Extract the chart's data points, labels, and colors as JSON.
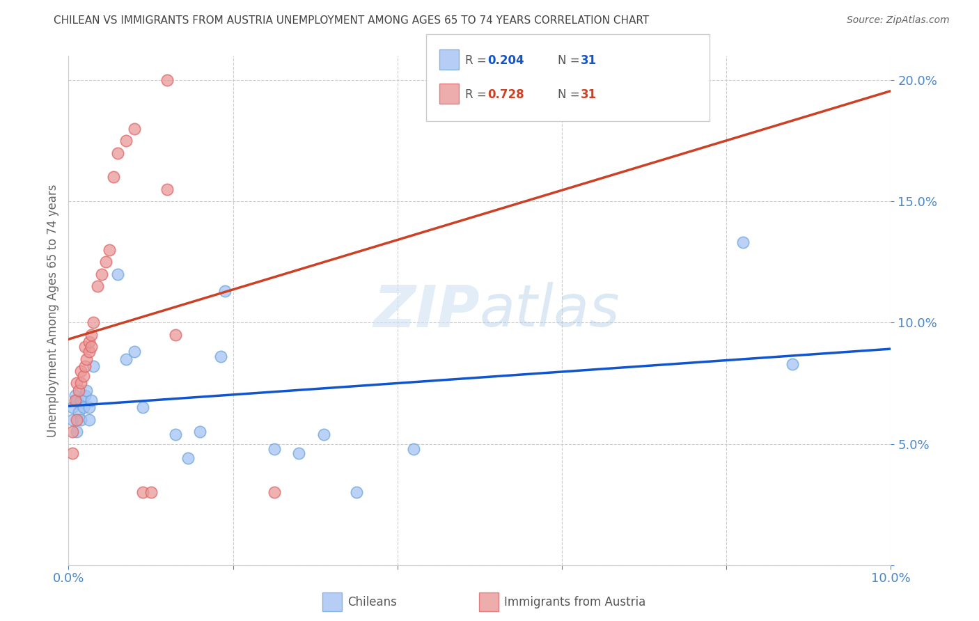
{
  "title": "CHILEAN VS IMMIGRANTS FROM AUSTRIA UNEMPLOYMENT AMONG AGES 65 TO 74 YEARS CORRELATION CHART",
  "source": "Source: ZipAtlas.com",
  "ylabel": "Unemployment Among Ages 65 to 74 years",
  "xlim": [
    0,
    0.1
  ],
  "ylim": [
    0,
    0.21
  ],
  "legend_labels": [
    "Chileans",
    "Immigrants from Austria"
  ],
  "r_chilean": 0.204,
  "n_chilean": 31,
  "r_austria": 0.728,
  "n_austria": 31,
  "blue_color": "#a4c2f4",
  "pink_color": "#ea9999",
  "blue_scatter_edge": "#6fa8dc",
  "pink_scatter_edge": "#e06666",
  "blue_line_color": "#1155cc",
  "pink_line_color": "#cc4125",
  "grid_color": "#cccccc",
  "title_color": "#434343",
  "axis_label_color": "#666666",
  "tick_color": "#4a86c8",
  "watermark_color": "#cfe2f3",
  "chilean_x": [
    0.0005,
    0.0005,
    0.0008,
    0.001,
    0.001,
    0.0012,
    0.0015,
    0.0015,
    0.0018,
    0.002,
    0.0022,
    0.0025,
    0.0025,
    0.0028,
    0.003,
    0.006,
    0.007,
    0.008,
    0.009,
    0.013,
    0.0145,
    0.016,
    0.0185,
    0.019,
    0.025,
    0.028,
    0.031,
    0.035,
    0.042,
    0.082,
    0.088
  ],
  "chilean_y": [
    0.065,
    0.06,
    0.07,
    0.055,
    0.068,
    0.063,
    0.068,
    0.06,
    0.065,
    0.07,
    0.072,
    0.065,
    0.06,
    0.068,
    0.082,
    0.12,
    0.085,
    0.088,
    0.065,
    0.054,
    0.044,
    0.055,
    0.086,
    0.113,
    0.048,
    0.046,
    0.054,
    0.03,
    0.048,
    0.133,
    0.083
  ],
  "austria_x": [
    0.0005,
    0.0005,
    0.0008,
    0.001,
    0.001,
    0.0012,
    0.0015,
    0.0015,
    0.0018,
    0.002,
    0.002,
    0.0022,
    0.0025,
    0.0025,
    0.0028,
    0.0028,
    0.003,
    0.0035,
    0.004,
    0.0045,
    0.005,
    0.0055,
    0.006,
    0.007,
    0.008,
    0.009,
    0.01,
    0.012,
    0.013,
    0.012,
    0.025
  ],
  "austria_y": [
    0.046,
    0.055,
    0.068,
    0.06,
    0.075,
    0.072,
    0.075,
    0.08,
    0.078,
    0.082,
    0.09,
    0.085,
    0.088,
    0.092,
    0.09,
    0.095,
    0.1,
    0.115,
    0.12,
    0.125,
    0.13,
    0.16,
    0.17,
    0.175,
    0.18,
    0.03,
    0.03,
    0.155,
    0.095,
    0.2,
    0.03
  ]
}
